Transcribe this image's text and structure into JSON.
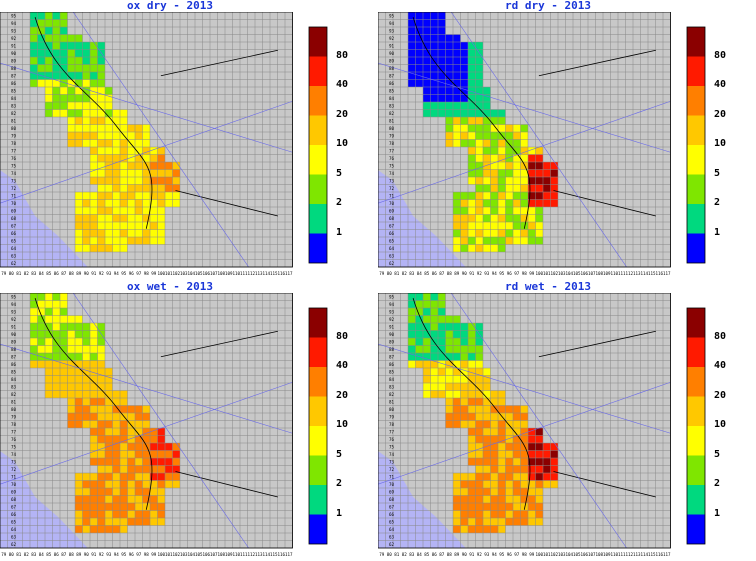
{
  "panels": [
    {
      "title": "ox dry - 2013",
      "scenario": "ox_dry"
    },
    {
      "title": "rd dry - 2013",
      "scenario": "rd_dry"
    },
    {
      "title": "ox wet - 2013",
      "scenario": "ox_wet"
    },
    {
      "title": "rd wet - 2013",
      "scenario": "rd_wet"
    }
  ],
  "legend": {
    "labels": [
      "80",
      "40",
      "20",
      "10",
      "5",
      "2",
      "1"
    ],
    "colors": [
      "#8b0000",
      "#ff1a00",
      "#ff7f00",
      "#ffc800",
      "#ffff00",
      "#7fe600",
      "#00d97f",
      "#0000ff"
    ]
  },
  "axes": {
    "x_ticks": [
      "79",
      "80",
      "81",
      "82",
      "83",
      "84",
      "85",
      "86",
      "87",
      "88",
      "89",
      "90",
      "91",
      "92",
      "93",
      "94",
      "95",
      "96",
      "97",
      "98",
      "99",
      "100",
      "101",
      "102",
      "103",
      "104",
      "105",
      "106",
      "107",
      "108",
      "109",
      "110",
      "111",
      "112",
      "113",
      "114",
      "115",
      "116",
      "117"
    ],
    "y_ticks": [
      "62",
      "63",
      "64",
      "65",
      "66",
      "67",
      "68",
      "69",
      "70",
      "71",
      "72",
      "73",
      "74",
      "75",
      "76",
      "77",
      "78",
      "79",
      "80",
      "81",
      "82",
      "83",
      "84",
      "85",
      "86",
      "87",
      "88",
      "89",
      "90",
      "91",
      "92",
      "93",
      "94",
      "95"
    ]
  },
  "colors": {
    "land": "#c8c8c8",
    "sea": "#b4b4f5",
    "grid": "#888888",
    "title": "#1a36d8"
  }
}
